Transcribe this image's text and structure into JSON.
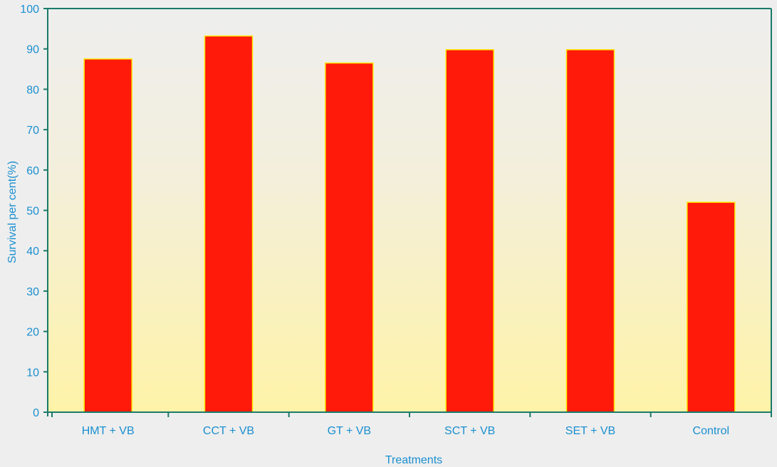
{
  "chart_data": {
    "type": "bar",
    "categories": [
      "HMT + VB",
      "CCT + VB",
      "GT + VB",
      "SCT + VB",
      "SET + VB",
      "Control"
    ],
    "values": [
      87.5,
      93.2,
      86.5,
      89.8,
      89.8,
      52.0
    ],
    "title": "",
    "xlabel": "Treatments",
    "ylabel": "Survival per cent(%)",
    "ylim": [
      0,
      100
    ],
    "yticks": [
      0,
      10,
      20,
      30,
      40,
      50,
      60,
      70,
      80,
      90,
      100
    ],
    "grid": false,
    "legend": "none",
    "colors": {
      "bar": "#ff1a0a",
      "bar_edge": "#ffe600",
      "axis": "#1a7a6a",
      "text": "#1a8fd0",
      "plot_bg_top": "#eeeeee",
      "plot_bg_bottom": "#fff3a8"
    }
  }
}
